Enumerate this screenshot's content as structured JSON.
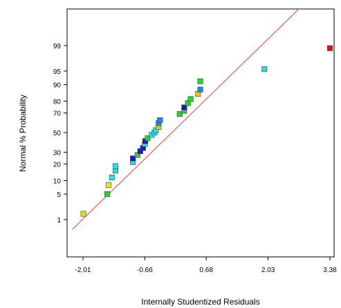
{
  "chart_data": {
    "type": "scatter",
    "xlabel": "Internally Studentized Residuals",
    "ylabel": "Normal % Probability",
    "x_ticks": [
      -2.01,
      -0.66,
      0.68,
      2.03,
      3.38
    ],
    "x_tick_labels": [
      "-2.01",
      "-0.66",
      "0.68",
      "2.03",
      "3.38"
    ],
    "y_ticks": [
      1,
      5,
      10,
      20,
      30,
      50,
      70,
      80,
      90,
      95,
      99
    ],
    "y_tick_labels": [
      "1",
      "5",
      "10",
      "20",
      "30",
      "50",
      "70",
      "80",
      "90",
      "95",
      "99"
    ],
    "xlim": [
      -2.24,
      3.55
    ],
    "y_scale": "normal-probability",
    "grid": false,
    "reference_line": {
      "color": "#ee7777",
      "points": [
        [
          -2.24,
          0.49
        ],
        [
          3.05,
          99.99
        ]
      ]
    },
    "points": [
      {
        "x": -2.0,
        "y": 1.5,
        "color": "#d8dc20"
      },
      {
        "x": -1.48,
        "y": 5.0,
        "color": "#33cc33"
      },
      {
        "x": -1.45,
        "y": 8.0,
        "color": "#e8e820"
      },
      {
        "x": -1.38,
        "y": 11.5,
        "color": "#22e0e0"
      },
      {
        "x": -1.3,
        "y": 15.5,
        "color": "#22e0e0"
      },
      {
        "x": -1.3,
        "y": 18.5,
        "color": "#22e0e0"
      },
      {
        "x": -0.92,
        "y": 21.5,
        "color": "#22e0e0"
      },
      {
        "x": -0.92,
        "y": 24.5,
        "color": "#1818cc"
      },
      {
        "x": -0.82,
        "y": 27.5,
        "color": "#33cc33"
      },
      {
        "x": -0.76,
        "y": 31.0,
        "color": "#1818cc"
      },
      {
        "x": -0.7,
        "y": 34.0,
        "color": "#1818cc"
      },
      {
        "x": -0.66,
        "y": 38.0,
        "color": "#22e0e0"
      },
      {
        "x": -0.65,
        "y": 41.0,
        "color": "#1818cc"
      },
      {
        "x": -0.6,
        "y": 44.0,
        "color": "#33cc33"
      },
      {
        "x": -0.51,
        "y": 47.5,
        "color": "#22e0e0"
      },
      {
        "x": -0.45,
        "y": 50.0,
        "color": "#22e0e0"
      },
      {
        "x": -0.42,
        "y": 52.5,
        "color": "#22e0e0"
      },
      {
        "x": -0.36,
        "y": 56.0,
        "color": "#e8c020"
      },
      {
        "x": -0.36,
        "y": 60.0,
        "color": "#2288dd"
      },
      {
        "x": -0.33,
        "y": 63.0,
        "color": "#2288dd"
      },
      {
        "x": 0.1,
        "y": 69.0,
        "color": "#33cc33"
      },
      {
        "x": 0.2,
        "y": 72.0,
        "color": "#33cc33"
      },
      {
        "x": 0.2,
        "y": 75.0,
        "color": "#1818cc"
      },
      {
        "x": 0.28,
        "y": 78.5,
        "color": "#33cc33"
      },
      {
        "x": 0.34,
        "y": 81.5,
        "color": "#33cc33"
      },
      {
        "x": 0.5,
        "y": 85.0,
        "color": "#e8c020"
      },
      {
        "x": 0.55,
        "y": 87.5,
        "color": "#2288dd"
      },
      {
        "x": 0.55,
        "y": 91.5,
        "color": "#33cc33"
      },
      {
        "x": 1.95,
        "y": 95.5,
        "color": "#22e0e0"
      },
      {
        "x": 3.38,
        "y": 98.8,
        "color": "#dd1111"
      }
    ]
  }
}
